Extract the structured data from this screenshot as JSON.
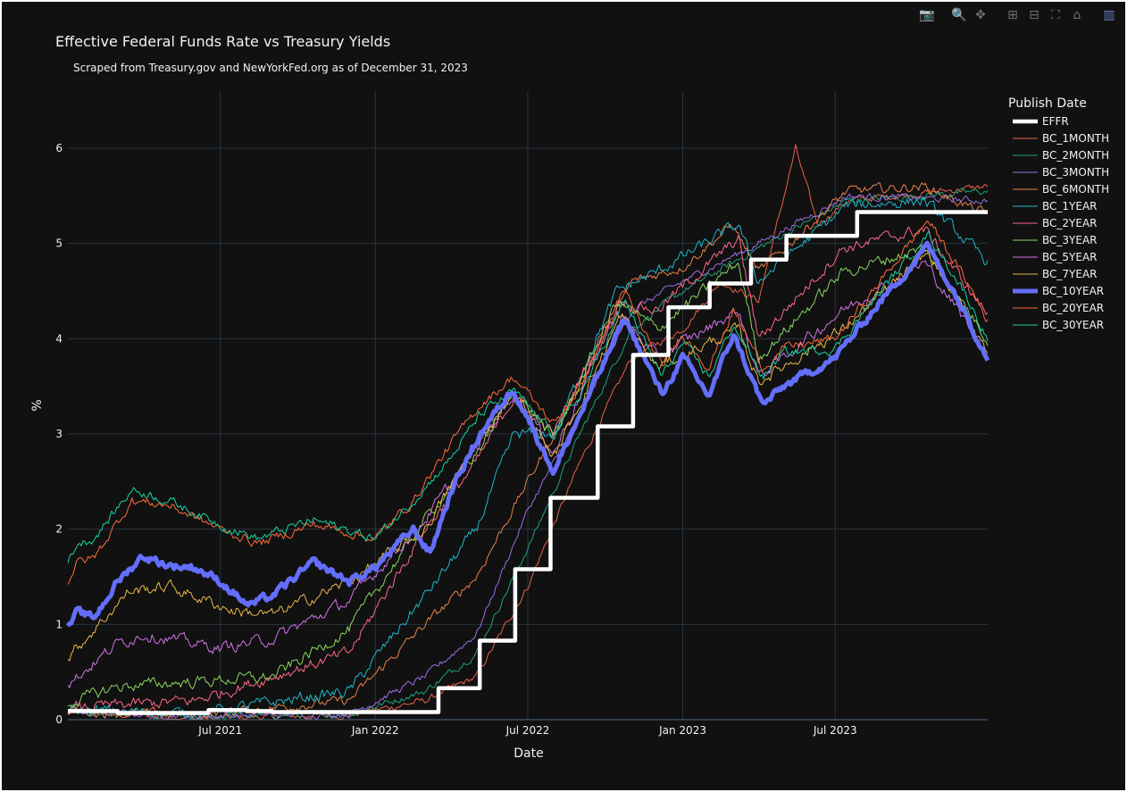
{
  "modebar": {
    "buttons": [
      {
        "name": "camera-icon",
        "glyph": "📷",
        "group": 0
      },
      {
        "name": "zoom-icon",
        "glyph": "🔍",
        "group": 1,
        "active": true
      },
      {
        "name": "pan-icon",
        "glyph": "✥",
        "group": 1
      },
      {
        "name": "zoom-in-icon",
        "glyph": "⊞",
        "group": 2
      },
      {
        "name": "zoom-out-icon",
        "glyph": "⊟",
        "group": 2
      },
      {
        "name": "autoscale-icon",
        "glyph": "⛶",
        "group": 2
      },
      {
        "name": "reset-axes-icon",
        "glyph": "⌂",
        "group": 2
      },
      {
        "name": "plotly-logo-icon",
        "glyph": "▥",
        "group": 3
      }
    ]
  },
  "chart_data": {
    "type": "line",
    "title": "Effective Federal Funds Rate vs Treasury Yields",
    "subtitle": "Scraped from Treasury.gov and NewYorkFed.org as of December 31, 2023",
    "xlabel": "Date",
    "ylabel": "%",
    "legend_title": "Publish Date",
    "legend_position": "right",
    "grid": true,
    "xlim": [
      "2021-01-01",
      "2023-12-29"
    ],
    "ylim": [
      0,
      6.6
    ],
    "x_ticks": [
      {
        "date": "2021-07-01",
        "label": "Jul 2021"
      },
      {
        "date": "2022-01-01",
        "label": "Jan 2022"
      },
      {
        "date": "2022-07-01",
        "label": "Jul 2022"
      },
      {
        "date": "2023-01-01",
        "label": "Jan 2023"
      },
      {
        "date": "2023-07-01",
        "label": "Jul 2023"
      }
    ],
    "y_ticks": [
      0,
      1,
      2,
      3,
      4,
      5,
      6
    ],
    "series": [
      {
        "name": "EFFR",
        "color": "#ffffff",
        "width": 4.5,
        "noise": 0,
        "step": true,
        "points": [
          [
            "2021-01-01",
            0.09
          ],
          [
            "2021-03-01",
            0.07
          ],
          [
            "2021-06-17",
            0.1
          ],
          [
            "2021-08-01",
            0.09
          ],
          [
            "2021-09-01",
            0.08
          ],
          [
            "2022-03-17",
            0.33
          ],
          [
            "2022-05-05",
            0.83
          ],
          [
            "2022-06-16",
            1.58
          ],
          [
            "2022-07-28",
            2.33
          ],
          [
            "2022-09-22",
            3.08
          ],
          [
            "2022-11-03",
            3.83
          ],
          [
            "2022-12-15",
            4.33
          ],
          [
            "2023-02-02",
            4.58
          ],
          [
            "2023-03-23",
            4.83
          ],
          [
            "2023-05-04",
            5.08
          ],
          [
            "2023-07-27",
            5.33
          ],
          [
            "2023-12-29",
            5.33
          ]
        ]
      },
      {
        "name": "BC_1MONTH",
        "color": "#e8624a",
        "width": 1,
        "noise": 0.03,
        "points": [
          [
            "2021-01-01",
            0.08
          ],
          [
            "2021-06-01",
            0.01
          ],
          [
            "2021-12-01",
            0.05
          ],
          [
            "2022-03-01",
            0.2
          ],
          [
            "2022-05-01",
            0.45
          ],
          [
            "2022-07-01",
            1.4
          ],
          [
            "2022-09-01",
            2.7
          ],
          [
            "2022-11-01",
            3.8
          ],
          [
            "2023-01-01",
            4.1
          ],
          [
            "2023-02-15",
            4.6
          ],
          [
            "2023-04-01",
            4.4
          ],
          [
            "2023-05-15",
            6.0
          ],
          [
            "2023-06-10",
            5.2
          ],
          [
            "2023-07-15",
            5.45
          ],
          [
            "2023-12-29",
            5.6
          ]
        ]
      },
      {
        "name": "BC_2MONTH",
        "color": "#1fa37a",
        "width": 1,
        "noise": 0.03,
        "points": [
          [
            "2021-01-01",
            0.08
          ],
          [
            "2021-06-01",
            0.03
          ],
          [
            "2021-12-01",
            0.06
          ],
          [
            "2022-03-01",
            0.3
          ],
          [
            "2022-05-01",
            0.7
          ],
          [
            "2022-07-01",
            1.8
          ],
          [
            "2022-09-01",
            3.0
          ],
          [
            "2022-11-01",
            4.1
          ],
          [
            "2023-01-01",
            4.5
          ],
          [
            "2023-04-01",
            4.95
          ],
          [
            "2023-07-15",
            5.45
          ],
          [
            "2023-12-29",
            5.55
          ]
        ]
      },
      {
        "name": "BC_3MONTH",
        "color": "#9d6ce8",
        "width": 1,
        "noise": 0.03,
        "points": [
          [
            "2021-01-01",
            0.09
          ],
          [
            "2021-06-01",
            0.04
          ],
          [
            "2021-12-01",
            0.06
          ],
          [
            "2022-03-01",
            0.45
          ],
          [
            "2022-05-01",
            0.9
          ],
          [
            "2022-07-01",
            2.2
          ],
          [
            "2022-09-01",
            3.2
          ],
          [
            "2022-11-01",
            4.3
          ],
          [
            "2023-01-01",
            4.6
          ],
          [
            "2023-04-01",
            5.0
          ],
          [
            "2023-07-15",
            5.5
          ],
          [
            "2023-12-29",
            5.45
          ]
        ]
      },
      {
        "name": "BC_6MONTH",
        "color": "#e8824a",
        "width": 1,
        "noise": 0.04,
        "points": [
          [
            "2021-01-01",
            0.09
          ],
          [
            "2021-06-01",
            0.05
          ],
          [
            "2021-12-01",
            0.2
          ],
          [
            "2022-03-01",
            1.0
          ],
          [
            "2022-05-01",
            1.5
          ],
          [
            "2022-07-01",
            2.5
          ],
          [
            "2022-09-01",
            3.5
          ],
          [
            "2022-11-01",
            4.6
          ],
          [
            "2023-01-01",
            4.75
          ],
          [
            "2023-03-01",
            5.2
          ],
          [
            "2023-04-01",
            4.7
          ],
          [
            "2023-07-15",
            5.55
          ],
          [
            "2023-10-15",
            5.6
          ],
          [
            "2023-12-29",
            5.3
          ]
        ]
      },
      {
        "name": "BC_1YEAR",
        "color": "#20b6c8",
        "width": 1,
        "noise": 0.05,
        "points": [
          [
            "2021-01-01",
            0.1
          ],
          [
            "2021-06-01",
            0.06
          ],
          [
            "2021-12-01",
            0.3
          ],
          [
            "2022-03-01",
            1.3
          ],
          [
            "2022-05-01",
            2.0
          ],
          [
            "2022-06-15",
            3.0
          ],
          [
            "2022-08-01",
            3.0
          ],
          [
            "2022-10-15",
            4.5
          ],
          [
            "2022-12-01",
            4.7
          ],
          [
            "2023-03-08",
            5.2
          ],
          [
            "2023-04-01",
            4.6
          ],
          [
            "2023-07-15",
            5.4
          ],
          [
            "2023-10-15",
            5.45
          ],
          [
            "2023-12-29",
            4.8
          ]
        ]
      },
      {
        "name": "BC_2YEAR",
        "color": "#ff6688",
        "width": 1,
        "noise": 0.05,
        "points": [
          [
            "2021-01-01",
            0.12
          ],
          [
            "2021-06-01",
            0.2
          ],
          [
            "2021-12-01",
            0.7
          ],
          [
            "2022-03-01",
            2.0
          ],
          [
            "2022-05-01",
            2.7
          ],
          [
            "2022-06-15",
            3.4
          ],
          [
            "2022-08-01",
            3.0
          ],
          [
            "2022-10-15",
            4.4
          ],
          [
            "2022-12-01",
            4.3
          ],
          [
            "2023-03-08",
            5.05
          ],
          [
            "2023-04-01",
            4.0
          ],
          [
            "2023-07-10",
            4.95
          ],
          [
            "2023-10-15",
            5.15
          ],
          [
            "2023-12-29",
            4.25
          ]
        ]
      },
      {
        "name": "BC_3YEAR",
        "color": "#8ad660",
        "width": 1,
        "noise": 0.05,
        "points": [
          [
            "2021-01-01",
            0.17
          ],
          [
            "2021-03-01",
            0.35
          ],
          [
            "2021-06-01",
            0.4
          ],
          [
            "2021-09-01",
            0.45
          ],
          [
            "2021-12-01",
            0.95
          ],
          [
            "2022-03-01",
            2.1
          ],
          [
            "2022-05-01",
            2.8
          ],
          [
            "2022-06-15",
            3.45
          ],
          [
            "2022-08-01",
            2.95
          ],
          [
            "2022-10-15",
            4.4
          ],
          [
            "2022-12-01",
            4.1
          ],
          [
            "2023-03-08",
            4.8
          ],
          [
            "2023-04-01",
            3.8
          ],
          [
            "2023-07-10",
            4.7
          ],
          [
            "2023-10-15",
            4.95
          ],
          [
            "2023-12-29",
            4.0
          ]
        ]
      },
      {
        "name": "BC_5YEAR",
        "color": "#d273e8",
        "width": 1,
        "noise": 0.05,
        "points": [
          [
            "2021-01-01",
            0.37
          ],
          [
            "2021-03-01",
            0.8
          ],
          [
            "2021-04-01",
            0.9
          ],
          [
            "2021-07-01",
            0.75
          ],
          [
            "2021-09-01",
            0.85
          ],
          [
            "2021-12-01",
            1.25
          ],
          [
            "2022-03-01",
            2.1
          ],
          [
            "2022-05-01",
            2.85
          ],
          [
            "2022-06-15",
            3.45
          ],
          [
            "2022-08-01",
            2.8
          ],
          [
            "2022-10-15",
            4.3
          ],
          [
            "2022-12-01",
            3.8
          ],
          [
            "2023-03-08",
            4.3
          ],
          [
            "2023-04-01",
            3.6
          ],
          [
            "2023-07-10",
            4.3
          ],
          [
            "2023-10-15",
            4.8
          ],
          [
            "2023-12-29",
            3.85
          ]
        ]
      },
      {
        "name": "BC_7YEAR",
        "color": "#e8b84a",
        "width": 1,
        "noise": 0.05,
        "points": [
          [
            "2021-01-01",
            0.65
          ],
          [
            "2021-03-15",
            1.35
          ],
          [
            "2021-05-01",
            1.4
          ],
          [
            "2021-07-15",
            1.15
          ],
          [
            "2021-09-01",
            1.1
          ],
          [
            "2021-12-01",
            1.45
          ],
          [
            "2022-03-01",
            2.0
          ],
          [
            "2022-05-01",
            2.9
          ],
          [
            "2022-06-15",
            3.45
          ],
          [
            "2022-08-01",
            2.75
          ],
          [
            "2022-10-20",
            4.25
          ],
          [
            "2022-12-01",
            3.7
          ],
          [
            "2023-03-08",
            4.1
          ],
          [
            "2023-04-01",
            3.55
          ],
          [
            "2023-07-10",
            4.1
          ],
          [
            "2023-10-19",
            4.9
          ],
          [
            "2023-12-29",
            3.88
          ]
        ]
      },
      {
        "name": "BC_10YEAR",
        "color": "#636efa",
        "width": 5,
        "noise": 0.035,
        "points": [
          [
            "2021-01-01",
            0.95
          ],
          [
            "2021-01-12",
            1.12
          ],
          [
            "2021-02-01",
            1.07
          ],
          [
            "2021-03-01",
            1.45
          ],
          [
            "2021-03-31",
            1.72
          ],
          [
            "2021-05-01",
            1.62
          ],
          [
            "2021-06-01",
            1.6
          ],
          [
            "2021-07-01",
            1.45
          ],
          [
            "2021-08-04",
            1.2
          ],
          [
            "2021-09-01",
            1.3
          ],
          [
            "2021-10-20",
            1.65
          ],
          [
            "2021-12-01",
            1.45
          ],
          [
            "2022-01-01",
            1.6
          ],
          [
            "2022-02-15",
            2.0
          ],
          [
            "2022-03-07",
            1.75
          ],
          [
            "2022-04-01",
            2.4
          ],
          [
            "2022-05-05",
            3.0
          ],
          [
            "2022-06-14",
            3.48
          ],
          [
            "2022-08-01",
            2.6
          ],
          [
            "2022-09-01",
            3.2
          ],
          [
            "2022-10-24",
            4.22
          ],
          [
            "2022-12-07",
            3.42
          ],
          [
            "2023-01-01",
            3.8
          ],
          [
            "2023-02-01",
            3.4
          ],
          [
            "2023-03-02",
            4.05
          ],
          [
            "2023-04-06",
            3.3
          ],
          [
            "2023-05-01",
            3.5
          ],
          [
            "2023-07-01",
            3.8
          ],
          [
            "2023-08-15",
            4.3
          ],
          [
            "2023-10-19",
            4.98
          ],
          [
            "2023-12-01",
            4.3
          ],
          [
            "2023-12-29",
            3.8
          ]
        ]
      },
      {
        "name": "BC_20YEAR",
        "color": "#ff6b3a",
        "width": 1,
        "noise": 0.04,
        "points": [
          [
            "2021-01-01",
            1.45
          ],
          [
            "2021-01-12",
            1.65
          ],
          [
            "2021-02-01",
            1.7
          ],
          [
            "2021-03-18",
            2.3
          ],
          [
            "2021-05-01",
            2.25
          ],
          [
            "2021-07-01",
            2.0
          ],
          [
            "2021-08-15",
            1.85
          ],
          [
            "2021-10-20",
            2.05
          ],
          [
            "2022-01-01",
            1.9
          ],
          [
            "2022-02-15",
            2.3
          ],
          [
            "2022-04-01",
            2.9
          ],
          [
            "2022-05-05",
            3.3
          ],
          [
            "2022-06-14",
            3.6
          ],
          [
            "2022-08-01",
            3.1
          ],
          [
            "2022-09-01",
            3.5
          ],
          [
            "2022-10-24",
            4.5
          ],
          [
            "2022-12-07",
            3.7
          ],
          [
            "2023-01-01",
            4.05
          ],
          [
            "2023-02-01",
            3.7
          ],
          [
            "2023-03-02",
            4.3
          ],
          [
            "2023-04-06",
            3.7
          ],
          [
            "2023-05-01",
            3.9
          ],
          [
            "2023-07-01",
            4.0
          ],
          [
            "2023-08-15",
            4.5
          ],
          [
            "2023-10-19",
            5.25
          ],
          [
            "2023-12-01",
            4.65
          ],
          [
            "2023-12-29",
            4.2
          ]
        ]
      },
      {
        "name": "BC_30YEAR",
        "color": "#19d3a0",
        "width": 1,
        "noise": 0.04,
        "points": [
          [
            "2021-01-01",
            1.65
          ],
          [
            "2021-01-12",
            1.85
          ],
          [
            "2021-02-01",
            1.9
          ],
          [
            "2021-03-18",
            2.42
          ],
          [
            "2021-05-01",
            2.3
          ],
          [
            "2021-07-01",
            2.05
          ],
          [
            "2021-08-15",
            1.9
          ],
          [
            "2021-10-20",
            2.1
          ],
          [
            "2022-01-01",
            1.9
          ],
          [
            "2022-02-15",
            2.3
          ],
          [
            "2022-04-01",
            2.75
          ],
          [
            "2022-05-05",
            3.2
          ],
          [
            "2022-06-14",
            3.45
          ],
          [
            "2022-08-01",
            3.0
          ],
          [
            "2022-09-01",
            3.4
          ],
          [
            "2022-10-24",
            4.4
          ],
          [
            "2022-12-07",
            3.6
          ],
          [
            "2023-01-01",
            3.95
          ],
          [
            "2023-02-01",
            3.6
          ],
          [
            "2023-03-02",
            4.15
          ],
          [
            "2023-04-06",
            3.6
          ],
          [
            "2023-05-01",
            3.85
          ],
          [
            "2023-07-01",
            3.9
          ],
          [
            "2023-08-15",
            4.4
          ],
          [
            "2023-10-19",
            5.1
          ],
          [
            "2023-12-01",
            4.5
          ],
          [
            "2023-12-29",
            4.0
          ]
        ]
      }
    ]
  }
}
